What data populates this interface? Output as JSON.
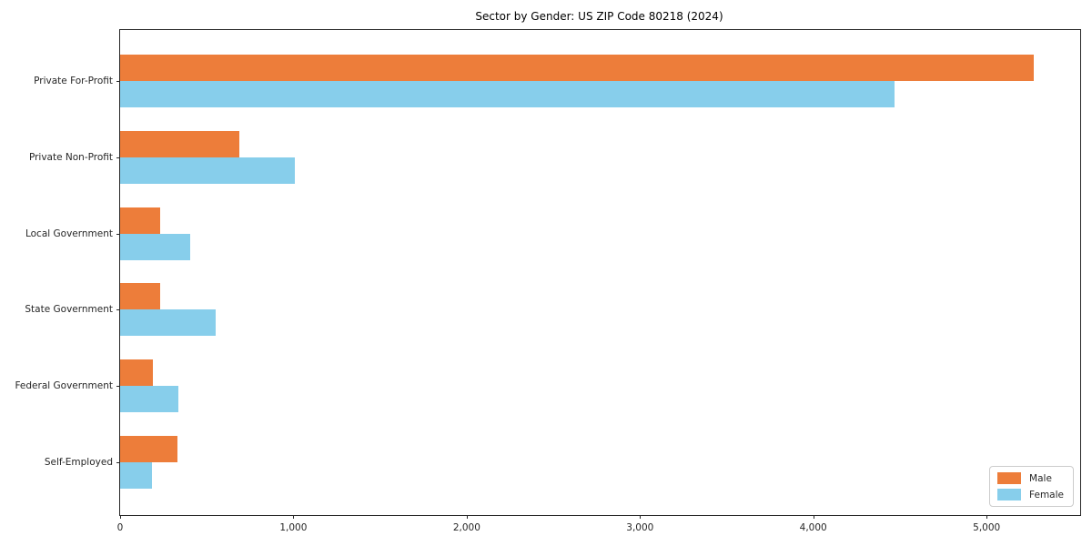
{
  "chart_data": {
    "type": "bar",
    "orientation": "horizontal",
    "title": "Sector by Gender: US ZIP Code 80218 (2024)",
    "categories": [
      "Private For-Profit",
      "Private Non-Profit",
      "Local Government",
      "State Government",
      "Federal Government",
      "Self-Employed"
    ],
    "series": [
      {
        "name": "Male",
        "color": "#ED7D3A",
        "values": [
          5270,
          690,
          230,
          230,
          190,
          330
        ]
      },
      {
        "name": "Female",
        "color": "#87CEEB",
        "values": [
          4470,
          1010,
          405,
          550,
          335,
          185
        ]
      }
    ],
    "xlabel": "",
    "ylabel": "",
    "xlim": [
      0,
      5540
    ],
    "xticks": [
      0,
      1000,
      2000,
      3000,
      4000,
      5000
    ],
    "xtick_labels": [
      "0",
      "1,000",
      "2,000",
      "3,000",
      "4,000",
      "5,000"
    ],
    "grid": false,
    "legend": {
      "position": "lower right",
      "entries": [
        "Male",
        "Female"
      ]
    }
  }
}
